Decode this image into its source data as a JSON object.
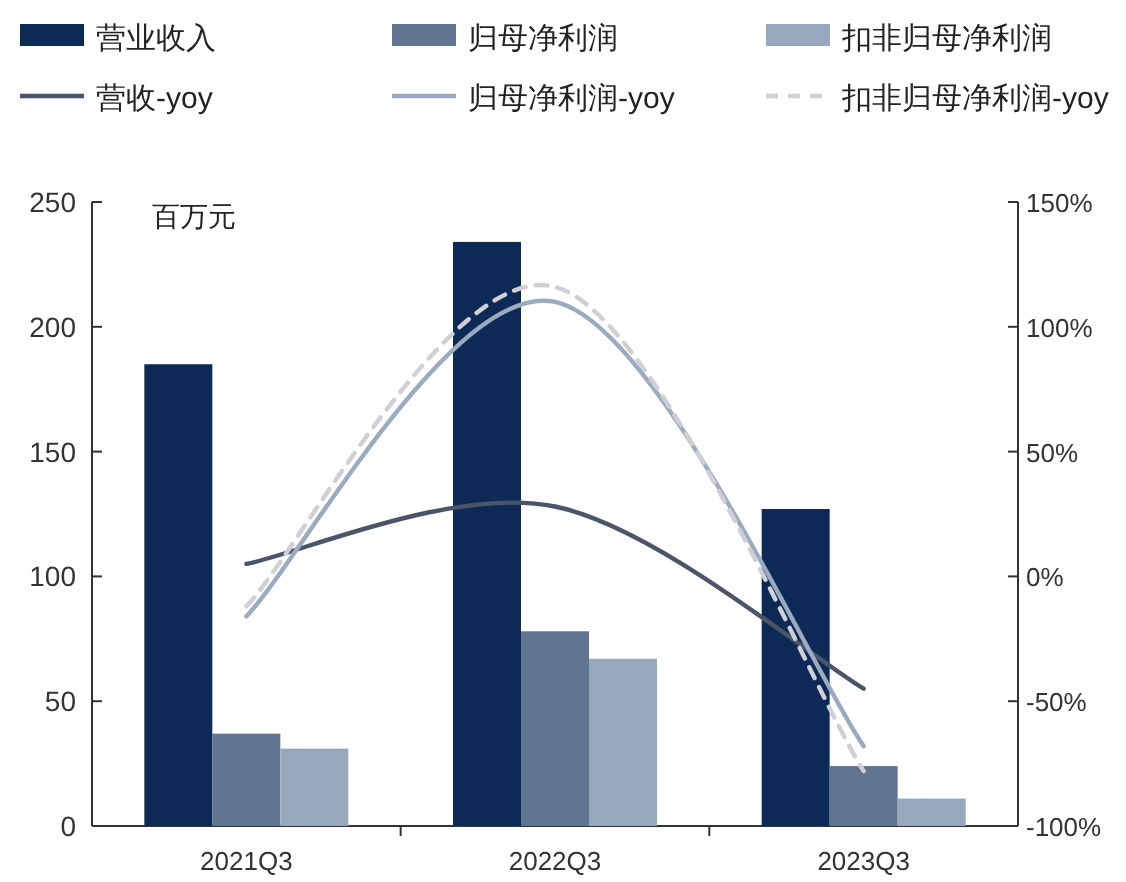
{
  "chart_data": {
    "type": "bar",
    "categories": [
      "2021Q3",
      "2022Q3",
      "2023Q3"
    ],
    "series": [
      {
        "name": "营业收入",
        "color": "#0d2a57",
        "values": [
          185,
          234,
          127
        ]
      },
      {
        "name": "归母净利润",
        "color": "#5f7590",
        "values": [
          37,
          78,
          24
        ]
      },
      {
        "name": "扣非归母净利润",
        "color": "#97a8bc",
        "values": [
          31,
          67,
          11
        ]
      },
      {
        "name": "营收-yoy",
        "type": "line",
        "axis": "y2",
        "color": "#4a5568",
        "line_style": "solid",
        "values": [
          5,
          28,
          -45
        ]
      },
      {
        "name": "归母净利润-yoy",
        "type": "line",
        "axis": "y2",
        "color": "#9aabc0",
        "line_style": "solid",
        "values": [
          -16,
          110,
          -68
        ]
      },
      {
        "name": "扣非归母净利润-yoy",
        "type": "line",
        "axis": "y2",
        "color": "#d0cfd6",
        "line_style": "dashed",
        "values": [
          -12,
          116,
          -78
        ]
      }
    ],
    "ylim": [
      0,
      250
    ],
    "yticks": [
      0,
      50,
      100,
      150,
      200,
      250
    ],
    "y2lim": [
      -100,
      150
    ],
    "y2ticks": [
      {
        "value": -100,
        "label": "-100%"
      },
      {
        "value": -50,
        "label": "-50%"
      },
      {
        "value": 0,
        "label": "0%"
      },
      {
        "value": 50,
        "label": "50%"
      },
      {
        "value": 100,
        "label": "100%"
      },
      {
        "value": 150,
        "label": "150%"
      }
    ],
    "annotations": [
      "百万元"
    ],
    "legend": "top",
    "grid": false,
    "marker": "none"
  }
}
